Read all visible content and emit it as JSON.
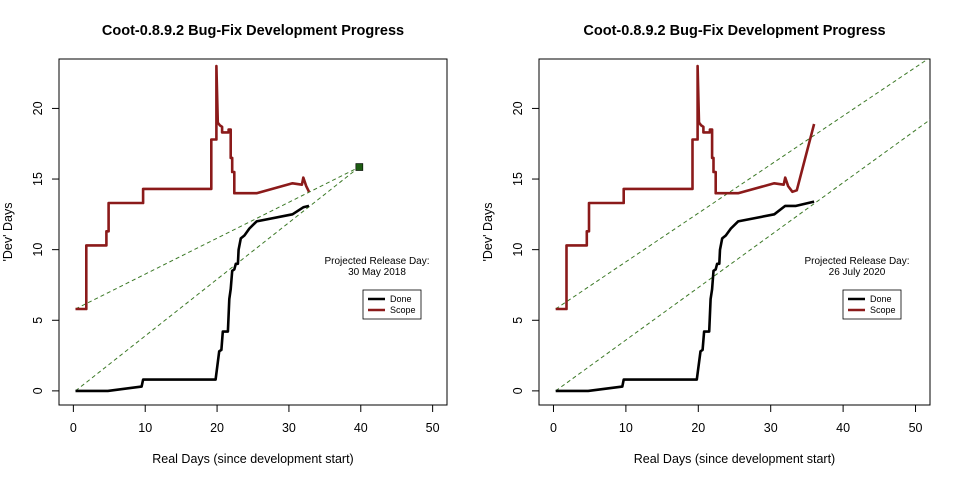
{
  "chart_data": [
    {
      "type": "line",
      "title": "Coot-0.8.9.2 Bug-Fix Development Progress",
      "xlabel": "Real Days (since development start)",
      "ylabel": "'Dev' Days",
      "xlim": [
        -2,
        52
      ],
      "ylim": [
        -1,
        23.5
      ],
      "xticks": [
        0,
        10,
        20,
        30,
        40,
        50
      ],
      "yticks": [
        0,
        5,
        10,
        15,
        20
      ],
      "grid": false,
      "legend": {
        "placement": "right",
        "entries": [
          "Done",
          "Scope"
        ]
      },
      "annotation": [
        "Projected Release Day:",
        "30 May 2018"
      ],
      "series": [
        {
          "name": "Done",
          "color": "#000000",
          "points": [
            [
              0.3,
              0
            ],
            [
              1,
              0
            ],
            [
              4.8,
              0
            ],
            [
              9.5,
              0.3
            ],
            [
              9.7,
              0.8
            ],
            [
              19.8,
              0.8
            ],
            [
              20.3,
              2.8
            ],
            [
              20.6,
              2.9
            ],
            [
              20.8,
              4.2
            ],
            [
              21.5,
              4.2
            ],
            [
              21.7,
              6.5
            ],
            [
              21.9,
              7.2
            ],
            [
              22.1,
              8.5
            ],
            [
              22.4,
              8.6
            ],
            [
              22.6,
              9
            ],
            [
              22.9,
              9
            ],
            [
              23,
              10
            ],
            [
              23.3,
              10.8
            ],
            [
              23.8,
              11
            ],
            [
              24.5,
              11.5
            ],
            [
              25.5,
              12
            ],
            [
              30.5,
              12.5
            ],
            [
              32,
              13
            ],
            [
              32.8,
              13.1
            ]
          ]
        },
        {
          "name": "Scope",
          "color": "#8b1a1a",
          "points": [
            [
              0.3,
              5.8
            ],
            [
              1.8,
              5.8
            ],
            [
              1.8,
              10.3
            ],
            [
              4.6,
              10.3
            ],
            [
              4.6,
              11.3
            ],
            [
              4.9,
              11.3
            ],
            [
              4.9,
              13.3
            ],
            [
              9.7,
              13.3
            ],
            [
              9.7,
              14.3
            ],
            [
              19.2,
              14.3
            ],
            [
              19.2,
              17.8
            ],
            [
              19.9,
              17.8
            ],
            [
              19.9,
              23
            ],
            [
              20.1,
              19
            ],
            [
              20.4,
              18.8
            ],
            [
              20.7,
              18.7
            ],
            [
              20.7,
              18.3
            ],
            [
              21.6,
              18.3
            ],
            [
              21.6,
              18.5
            ],
            [
              21.9,
              18.5
            ],
            [
              21.9,
              16.5
            ],
            [
              22.1,
              16.5
            ],
            [
              22.1,
              15.5
            ],
            [
              22.4,
              15.5
            ],
            [
              22.4,
              14
            ],
            [
              25.5,
              14
            ],
            [
              30.5,
              14.7
            ],
            [
              31.8,
              14.6
            ],
            [
              32,
              15.1
            ],
            [
              32.4,
              14.5
            ],
            [
              32.8,
              14.1
            ]
          ]
        }
      ],
      "projection_lines": [
        [
          [
            0.3,
            0
          ],
          [
            39.8,
            15.85
          ]
        ],
        [
          [
            0.3,
            5.8
          ],
          [
            39.8,
            15.85
          ]
        ]
      ],
      "release_marker": [
        39.8,
        15.85
      ]
    },
    {
      "type": "line",
      "title": "Coot-0.8.9.2 Bug-Fix Development Progress",
      "xlabel": "Real Days (since development start)",
      "ylabel": "'Dev' Days",
      "xlim": [
        -2,
        52
      ],
      "ylim": [
        -1,
        23.5
      ],
      "xticks": [
        0,
        10,
        20,
        30,
        40,
        50
      ],
      "yticks": [
        0,
        5,
        10,
        15,
        20
      ],
      "grid": false,
      "legend": {
        "placement": "right",
        "entries": [
          "Done",
          "Scope"
        ]
      },
      "annotation": [
        "Projected Release Day:",
        "26 July 2020"
      ],
      "series": [
        {
          "name": "Done",
          "color": "#000000",
          "points": [
            [
              0.3,
              0
            ],
            [
              1,
              0
            ],
            [
              4.8,
              0
            ],
            [
              9.5,
              0.3
            ],
            [
              9.7,
              0.8
            ],
            [
              19.8,
              0.8
            ],
            [
              20.3,
              2.8
            ],
            [
              20.6,
              2.9
            ],
            [
              20.8,
              4.2
            ],
            [
              21.5,
              4.2
            ],
            [
              21.7,
              6.5
            ],
            [
              21.9,
              7.2
            ],
            [
              22.1,
              8.5
            ],
            [
              22.4,
              8.6
            ],
            [
              22.6,
              9
            ],
            [
              22.9,
              9
            ],
            [
              23,
              10
            ],
            [
              23.3,
              10.8
            ],
            [
              23.8,
              11
            ],
            [
              24.5,
              11.5
            ],
            [
              25.5,
              12
            ],
            [
              30.5,
              12.5
            ],
            [
              32,
              13.1
            ],
            [
              33.5,
              13.1
            ],
            [
              36,
              13.4
            ]
          ]
        },
        {
          "name": "Scope",
          "color": "#8b1a1a",
          "points": [
            [
              0.3,
              5.8
            ],
            [
              1.8,
              5.8
            ],
            [
              1.8,
              10.3
            ],
            [
              4.6,
              10.3
            ],
            [
              4.6,
              11.3
            ],
            [
              4.9,
              11.3
            ],
            [
              4.9,
              13.3
            ],
            [
              9.7,
              13.3
            ],
            [
              9.7,
              14.3
            ],
            [
              19.2,
              14.3
            ],
            [
              19.2,
              17.8
            ],
            [
              19.9,
              17.8
            ],
            [
              19.9,
              23
            ],
            [
              20.1,
              19
            ],
            [
              20.4,
              18.8
            ],
            [
              20.7,
              18.7
            ],
            [
              20.7,
              18.3
            ],
            [
              21.6,
              18.3
            ],
            [
              21.6,
              18.5
            ],
            [
              21.9,
              18.5
            ],
            [
              21.9,
              16.5
            ],
            [
              22.1,
              16.5
            ],
            [
              22.1,
              15.5
            ],
            [
              22.4,
              15.5
            ],
            [
              22.4,
              14
            ],
            [
              25.5,
              14
            ],
            [
              30.5,
              14.7
            ],
            [
              31.8,
              14.6
            ],
            [
              32,
              15.1
            ],
            [
              32.4,
              14.5
            ],
            [
              33,
              14.1
            ],
            [
              33.6,
              14.2
            ],
            [
              36,
              18.9
            ]
          ]
        }
      ],
      "projection_lines": [
        [
          [
            0.3,
            0
          ],
          [
            52,
            19.2
          ]
        ],
        [
          [
            0.3,
            5.8
          ],
          [
            52,
            23.6
          ]
        ]
      ]
    }
  ]
}
